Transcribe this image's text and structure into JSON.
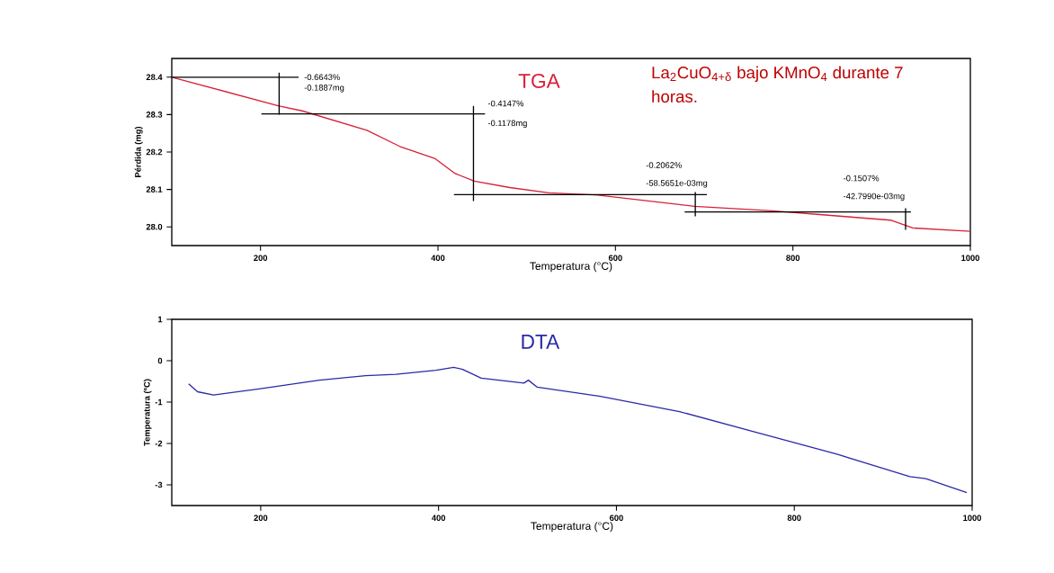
{
  "chart_data": [
    {
      "type": "line",
      "title": "TGA",
      "subtitle": "La$_{2}$CuO$_{4+δ}$ bajo KMnO$_{4}$ durante 7 horas.",
      "xlabel": "Temperatura (°C)",
      "ylabel": "Pérdida (mg)",
      "xlim": [
        100,
        1000
      ],
      "ylim": [
        27.95,
        28.45
      ],
      "xticks": [
        200,
        400,
        600,
        800,
        1000
      ],
      "yticks": [
        {
          "value": 28.0,
          "label": "28.0"
        },
        {
          "value": 28.1,
          "label": "28.1"
        },
        {
          "value": 28.2,
          "label": "28.2"
        },
        {
          "value": 28.3,
          "label": "28.3"
        },
        {
          "value": 28.4,
          "label": "28.4"
        }
      ],
      "series": [
        {
          "color": "#d8203a",
          "x": [
            100,
            221,
            247,
            320,
            357,
            397,
            419,
            441,
            481,
            525,
            580,
            689,
            777,
            830,
            910,
            935,
            1000
          ],
          "values": [
            28.4,
            28.323,
            28.31,
            28.258,
            28.215,
            28.182,
            28.143,
            28.122,
            28.105,
            28.091,
            28.085,
            28.055,
            28.043,
            28.033,
            28.018,
            27.997,
            27.988
          ]
        },
        {
          "color": "#000000",
          "x": [
            100,
            243
          ],
          "values": [
            28.4,
            28.4
          ]
        },
        {
          "color": "#000000",
          "x": [
            221,
            221
          ],
          "values": [
            28.412,
            28.3
          ]
        },
        {
          "color": "#000000",
          "x": [
            201,
            453
          ],
          "values": [
            28.302,
            28.302
          ]
        },
        {
          "color": "#000000",
          "x": [
            440,
            440
          ],
          "values": [
            28.323,
            28.069
          ]
        },
        {
          "color": "#000000",
          "x": [
            418,
            703
          ],
          "values": [
            28.086,
            28.086
          ]
        },
        {
          "color": "#000000",
          "x": [
            690,
            690
          ],
          "values": [
            28.093,
            28.028
          ]
        },
        {
          "color": "#000000",
          "x": [
            678,
            933
          ],
          "values": [
            28.04,
            28.04
          ]
        },
        {
          "color": "#000000",
          "x": [
            927,
            927
          ],
          "values": [
            28.05,
            27.992
          ]
        }
      ],
      "annotations": [
        "-0.6643%",
        "-0.1887mg",
        "-0.4147%",
        "-0.1178mg",
        "-0.2062%",
        "-58.5651e-03mg",
        "-0.1507%",
        "-42.7990e-03mg"
      ]
    },
    {
      "type": "line",
      "title": "DTA",
      "xlabel": "Temperatura (°C)",
      "ylabel": "Temperatura (ºC)",
      "xlim": [
        100,
        1000
      ],
      "ylim": [
        -3.5,
        1
      ],
      "xticks": [
        200,
        400,
        600,
        800,
        1000
      ],
      "yticks": [
        -3,
        -2,
        -1,
        0,
        1
      ],
      "series": [
        {
          "color": "#2a2aa8",
          "x": [
            119,
            129,
            147,
            198,
            266,
            318,
            352,
            397,
            417,
            427,
            448,
            496,
            501,
            511,
            582,
            671,
            759,
            848,
            930,
            948,
            994
          ],
          "values": [
            -0.56,
            -0.75,
            -0.83,
            -0.68,
            -0.47,
            -0.36,
            -0.33,
            -0.23,
            -0.16,
            -0.21,
            -0.42,
            -0.54,
            -0.47,
            -0.64,
            -0.86,
            -1.23,
            -1.74,
            -2.26,
            -2.8,
            -2.85,
            -3.19
          ]
        }
      ]
    }
  ]
}
